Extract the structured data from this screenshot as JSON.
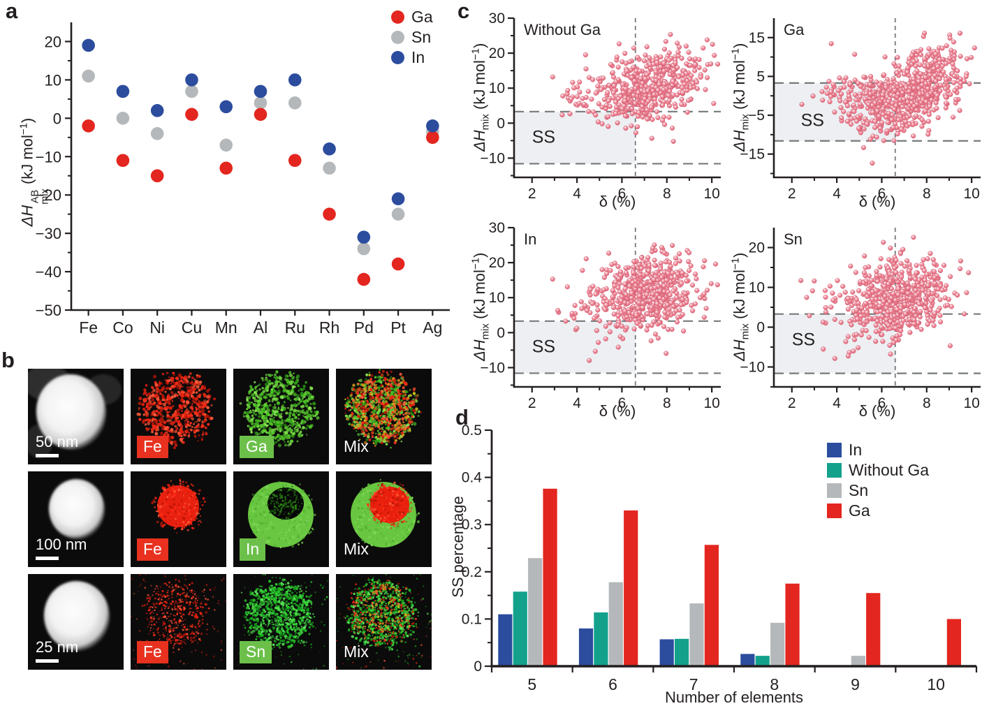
{
  "colors": {
    "ink": "#231f20",
    "scatter_pink": "#ee8090",
    "scatter_rim": "#c9566b",
    "dash_grey": "#76797b",
    "ss_shade": "#edeff2",
    "map_bg": "#0b0b0b"
  },
  "panels": {
    "a": {
      "label": "a",
      "ylabel": {
        "dH": "ΔH",
        "sup": "AB",
        "sub": "mix",
        "unit_open": " (kJ mol",
        "unit_exp": "−1",
        "unit_close": ")"
      }
    },
    "b": {
      "label": "b"
    },
    "c": {
      "label": "c",
      "ylabel": {
        "dH": "ΔH",
        "sub": "mix",
        "unit_open": " (kJ mol",
        "unit_exp": "−1",
        "unit_close": ")"
      }
    },
    "d": {
      "label": "d"
    }
  },
  "panel_b": {
    "badge_colors": {
      "red": "#e8311f",
      "green": "#6cc04a"
    },
    "rows": [
      {
        "scale": "50 nm",
        "cells": [
          {
            "kind": "stem"
          },
          {
            "kind": "eds",
            "element": "Fe",
            "style": "fe-dispersed",
            "badge": "red"
          },
          {
            "kind": "eds",
            "element": "Ga",
            "style": "ga-dispersed",
            "badge": "green"
          },
          {
            "kind": "eds",
            "element": "Mix",
            "style": "mix-dispersed",
            "badge": "none"
          }
        ]
      },
      {
        "scale": "100 nm",
        "cells": [
          {
            "kind": "stem"
          },
          {
            "kind": "eds",
            "element": "Fe",
            "style": "fe-core",
            "badge": "red"
          },
          {
            "kind": "eds",
            "element": "In",
            "style": "in-shell",
            "badge": "green"
          },
          {
            "kind": "eds",
            "element": "Mix",
            "style": "mix-shell",
            "badge": "none"
          }
        ]
      },
      {
        "scale": "25 nm",
        "cells": [
          {
            "kind": "stem"
          },
          {
            "kind": "eds",
            "element": "Fe",
            "style": "fe-sparse",
            "badge": "red"
          },
          {
            "kind": "eds",
            "element": "Sn",
            "style": "sn-dense",
            "badge": "green"
          },
          {
            "kind": "eds",
            "element": "Mix",
            "style": "mix-sparse",
            "badge": "none"
          }
        ]
      }
    ]
  },
  "chart_data": [
    {
      "id": "panel-a-enthalpy",
      "type": "scatter",
      "subtype": "categorical",
      "categories": [
        "Fe",
        "Co",
        "Ni",
        "Cu",
        "Mn",
        "Al",
        "Ru",
        "Rh",
        "Pd",
        "Pt",
        "Ag"
      ],
      "ylim": [
        -50,
        25
      ],
      "yticks": [
        20,
        10,
        0,
        -10,
        -20,
        -30,
        -40,
        -50
      ],
      "minor_step": 5,
      "series": [
        {
          "name": "Ga",
          "color": "#e3261f",
          "z": 1,
          "values": [
            -2,
            -11,
            -15,
            1,
            -13,
            1,
            -11,
            -25,
            -42,
            -38,
            -5
          ]
        },
        {
          "name": "Sn",
          "color": "#b5b8ba",
          "z": 0,
          "values": [
            11,
            0,
            -4,
            7,
            -7,
            4,
            4,
            -13,
            -34,
            -25,
            -3.5
          ]
        },
        {
          "name": "In",
          "color": "#2c4c9e",
          "z": 2,
          "values": [
            19,
            7,
            2,
            10,
            3,
            7,
            10,
            -8,
            -31,
            -21,
            -2
          ]
        }
      ]
    },
    {
      "id": "c-without-ga",
      "type": "scatter",
      "subtype": "cloud",
      "title": "Without Ga",
      "xlabel": "δ (%)",
      "xlim": [
        1.2,
        10.4
      ],
      "xticks": [
        2,
        4,
        6,
        8,
        10
      ],
      "xticks_minor": [
        3,
        5,
        7,
        9
      ],
      "ylim": [
        -15.5,
        30
      ],
      "yticks": [
        30,
        20,
        10,
        0,
        -10
      ],
      "minor_step": 5,
      "ss": {
        "x_max": 6.6,
        "y_top": 3.3,
        "y_bottom": -11.6
      },
      "ss_label": "SS",
      "ss_label_pos": [
        2.0,
        -5.6
      ],
      "cloud": [
        {
          "n": 520,
          "cx": 7.25,
          "cy": 10.5,
          "sx": 1.15,
          "sy": 5.2,
          "corr": 0.35,
          "seed": 11
        },
        {
          "n": 36,
          "cx": 4.7,
          "cy": 8.5,
          "sx": 0.85,
          "sy": 4.2,
          "corr": 0,
          "seed": 12
        }
      ],
      "note": "point cloud approximated from figure"
    },
    {
      "id": "c-ga",
      "type": "scatter",
      "subtype": "cloud",
      "title": "Ga",
      "xlabel": "δ (%)",
      "xlim": [
        1.2,
        10.4
      ],
      "xticks": [
        2,
        4,
        6,
        8,
        10
      ],
      "xticks_minor": [
        3,
        5,
        7,
        9
      ],
      "ylim": [
        -21,
        20
      ],
      "yticks": [
        15,
        5,
        -5,
        -15
      ],
      "minor_step": 5,
      "ss": {
        "x_max": 6.6,
        "y_top": 3.3,
        "y_bottom": -11.6
      },
      "ss_label": "SS",
      "ss_label_pos": [
        2.4,
        -7.8
      ],
      "cloud": [
        {
          "n": 320,
          "cx": 6.1,
          "cy": -2.5,
          "sx": 0.95,
          "sy": 4.2,
          "corr": 0.1,
          "seed": 21
        },
        {
          "n": 370,
          "cx": 8.0,
          "cy": 3.5,
          "sx": 0.85,
          "sy": 4.6,
          "corr": 0.25,
          "seed": 22
        },
        {
          "n": 36,
          "cx": 4.5,
          "cy": 0.5,
          "sx": 0.8,
          "sy": 3.4,
          "corr": 0,
          "seed": 23
        }
      ],
      "note": "point cloud approximated from figure"
    },
    {
      "id": "c-in",
      "type": "scatter",
      "subtype": "cloud",
      "title": "In",
      "xlabel": "δ (%)",
      "xlim": [
        1.2,
        10.4
      ],
      "xticks": [
        2,
        4,
        6,
        8,
        10
      ],
      "xticks_minor": [
        3,
        5,
        7,
        9
      ],
      "ylim": [
        -15.5,
        30
      ],
      "yticks": [
        30,
        20,
        10,
        0,
        -10
      ],
      "minor_step": 5,
      "ss": {
        "x_max": 6.6,
        "y_top": 3.3,
        "y_bottom": -11.6
      },
      "ss_label": "SS",
      "ss_label_pos": [
        2.0,
        -5.6
      ],
      "cloud": [
        {
          "n": 600,
          "cx": 7.1,
          "cy": 11.5,
          "sx": 1.05,
          "sy": 5.2,
          "corr": 0.15,
          "seed": 31
        },
        {
          "n": 38,
          "cx": 4.8,
          "cy": 9,
          "sx": 0.9,
          "sy": 5,
          "corr": 0,
          "seed": 32
        }
      ],
      "note": "point cloud approximated from figure"
    },
    {
      "id": "c-sn",
      "type": "scatter",
      "subtype": "cloud",
      "title": "Sn",
      "xlabel": "δ (%)",
      "xlim": [
        1.2,
        10.4
      ],
      "xticks": [
        2,
        4,
        6,
        8,
        10
      ],
      "xticks_minor": [
        3,
        5,
        7,
        9
      ],
      "ylim": [
        -15,
        25
      ],
      "yticks": [
        20,
        10,
        0,
        -10
      ],
      "minor_step": 5,
      "ss": {
        "x_max": 6.6,
        "y_top": 3.3,
        "y_bottom": -11.6
      },
      "ss_label": "SS",
      "ss_label_pos": [
        2.0,
        -4.6
      ],
      "cloud": [
        {
          "n": 580,
          "cx": 6.75,
          "cy": 7,
          "sx": 1.1,
          "sy": 5.0,
          "corr": 0.25,
          "seed": 41
        },
        {
          "n": 38,
          "cx": 4.3,
          "cy": 7,
          "sx": 0.9,
          "sy": 4.6,
          "corr": 0,
          "seed": 42
        }
      ],
      "note": "point cloud approximated from figure"
    },
    {
      "id": "panel-d-ss-percentage",
      "type": "bar",
      "categories": [
        "5",
        "6",
        "7",
        "8",
        "9",
        "10"
      ],
      "ylim": [
        0,
        0.5
      ],
      "yticks": [
        0,
        0.1,
        0.2,
        0.3,
        0.4,
        0.5
      ],
      "minor_step": 0.05,
      "ylabel": "SS percentage",
      "xlabel": "Number of elements",
      "series": [
        {
          "name": "In",
          "color": "#2c4c9e",
          "values": [
            0.11,
            0.08,
            0.057,
            0.026,
            0,
            0
          ]
        },
        {
          "name": "Without Ga",
          "color": "#14a18c",
          "values": [
            0.158,
            0.114,
            0.058,
            0.022,
            0,
            0
          ]
        },
        {
          "name": "Sn",
          "color": "#b5b8ba",
          "values": [
            0.229,
            0.178,
            0.133,
            0.092,
            0.022,
            0
          ]
        },
        {
          "name": "Ga",
          "color": "#e3261f",
          "values": [
            0.376,
            0.33,
            0.257,
            0.175,
            0.155,
            0.1
          ]
        }
      ]
    }
  ]
}
